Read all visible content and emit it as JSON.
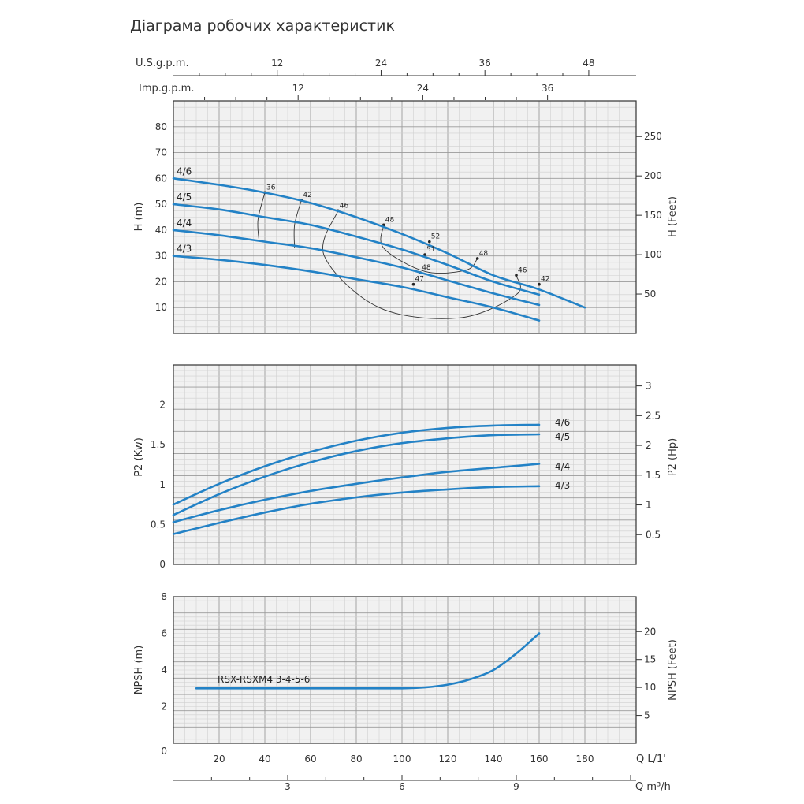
{
  "title": "Діаграма робочих характеристик",
  "colors": {
    "curve": "#2382c6",
    "grid_major": "#9a9a9a",
    "grid_minor": "#d0d0d0",
    "panel_bg": "#f1f1f1",
    "frame": "#333333"
  },
  "chart_data": [
    {
      "type": "line",
      "name": "head",
      "ylabel": "H (m)",
      "y2label": "H (Feet)",
      "x_unit_label": "Q L/1'",
      "xlim": [
        0,
        200
      ],
      "ylim": [
        0,
        90
      ],
      "y_ticks": [
        10,
        20,
        30,
        40,
        50,
        60,
        70,
        80
      ],
      "y2_ticks": [
        50,
        100,
        150,
        200,
        250
      ],
      "top_axes": [
        {
          "label": "U.S.g.p.m.",
          "ticks": [
            12,
            24,
            36,
            48
          ]
        },
        {
          "label": "Imp.g.p.m.",
          "ticks": [
            12,
            24,
            36
          ]
        }
      ],
      "series": [
        {
          "name": "4/6",
          "x": [
            0,
            20,
            40,
            60,
            80,
            100,
            120,
            140,
            160,
            180
          ],
          "y": [
            60,
            57.5,
            54.5,
            50.5,
            45,
            38.5,
            31,
            22.5,
            17,
            10
          ]
        },
        {
          "name": "4/5",
          "x": [
            0,
            20,
            40,
            60,
            80,
            100,
            120,
            140,
            160
          ],
          "y": [
            50,
            48,
            45,
            42,
            37.5,
            32.5,
            26.5,
            20,
            15
          ]
        },
        {
          "name": "4/4",
          "x": [
            0,
            20,
            40,
            60,
            80,
            100,
            120,
            140,
            160
          ],
          "y": [
            40,
            38,
            35.5,
            33,
            29.5,
            25.5,
            20.5,
            15.5,
            11
          ]
        },
        {
          "name": "4/3",
          "x": [
            0,
            20,
            40,
            60,
            80,
            100,
            120,
            140,
            160
          ],
          "y": [
            30,
            28.5,
            26.5,
            24,
            21,
            18,
            14,
            10,
            5
          ]
        }
      ],
      "efficiency_annotations": [
        {
          "label": "36",
          "x": 40,
          "y": 54.5
        },
        {
          "label": "42",
          "x": 56,
          "y": 51.5
        },
        {
          "label": "46",
          "x": 72,
          "y": 47.5
        },
        {
          "label": "48",
          "x": 92,
          "y": 42
        },
        {
          "label": "52",
          "x": 112,
          "y": 35.5
        },
        {
          "label": "51",
          "x": 110,
          "y": 30.5
        },
        {
          "label": "48",
          "x": 133,
          "y": 29
        },
        {
          "label": "48",
          "x": 108,
          "y": 23.5
        },
        {
          "label": "46",
          "x": 150,
          "y": 22.5
        },
        {
          "label": "42",
          "x": 160,
          "y": 19
        },
        {
          "label": "47",
          "x": 105,
          "y": 19
        }
      ]
    },
    {
      "type": "line",
      "name": "power",
      "ylabel": "P2 (Kw)",
      "y2label": "P2 (Hp)",
      "xlim": [
        0,
        200
      ],
      "ylim": [
        0,
        2.5
      ],
      "y_ticks": [
        "0",
        "0.5",
        "1",
        "1.5",
        "2"
      ],
      "y2_ticks": [
        "0.5",
        "1",
        "1.5",
        "2",
        "2.5",
        "3"
      ],
      "series": [
        {
          "name": "4/6",
          "x": [
            0,
            20,
            40,
            60,
            80,
            100,
            120,
            140,
            160
          ],
          "y": [
            0.75,
            1.01,
            1.23,
            1.41,
            1.55,
            1.65,
            1.71,
            1.74,
            1.75
          ]
        },
        {
          "name": "4/5",
          "x": [
            0,
            20,
            40,
            60,
            80,
            100,
            120,
            140,
            160
          ],
          "y": [
            0.62,
            0.88,
            1.1,
            1.28,
            1.42,
            1.52,
            1.58,
            1.62,
            1.63
          ]
        },
        {
          "name": "4/4",
          "x": [
            0,
            20,
            40,
            60,
            80,
            100,
            120,
            140,
            160
          ],
          "y": [
            0.53,
            0.68,
            0.81,
            0.92,
            1.01,
            1.09,
            1.16,
            1.21,
            1.26
          ]
        },
        {
          "name": "4/3",
          "x": [
            0,
            20,
            40,
            60,
            80,
            100,
            120,
            140,
            160
          ],
          "y": [
            0.38,
            0.52,
            0.65,
            0.76,
            0.84,
            0.9,
            0.94,
            0.97,
            0.98
          ]
        }
      ]
    },
    {
      "type": "line",
      "name": "npsh",
      "ylabel": "NPSH (m)",
      "y2label": "NPSH (Feet)",
      "xlim": [
        0,
        200
      ],
      "ylim": [
        0,
        8
      ],
      "y_ticks": [
        "0",
        "2",
        "4",
        "6",
        "8"
      ],
      "y2_ticks": [
        "5",
        "10",
        "15",
        "20"
      ],
      "x_ticks": [
        "20",
        "40",
        "60",
        "80",
        "100",
        "120",
        "140",
        "160",
        "180"
      ],
      "x_unit_label": "Q L/1'",
      "x2_ticks": [
        "3",
        "6",
        "9"
      ],
      "x2_unit_label": "Q m³/h",
      "series": [
        {
          "name": "RSX-RSXM4 3-4-5-6",
          "x": [
            10,
            40,
            80,
            100,
            110,
            120,
            130,
            140,
            150,
            160
          ],
          "y": [
            3,
            3,
            3,
            3,
            3.05,
            3.2,
            3.5,
            4.0,
            4.9,
            6.0
          ]
        }
      ]
    }
  ]
}
